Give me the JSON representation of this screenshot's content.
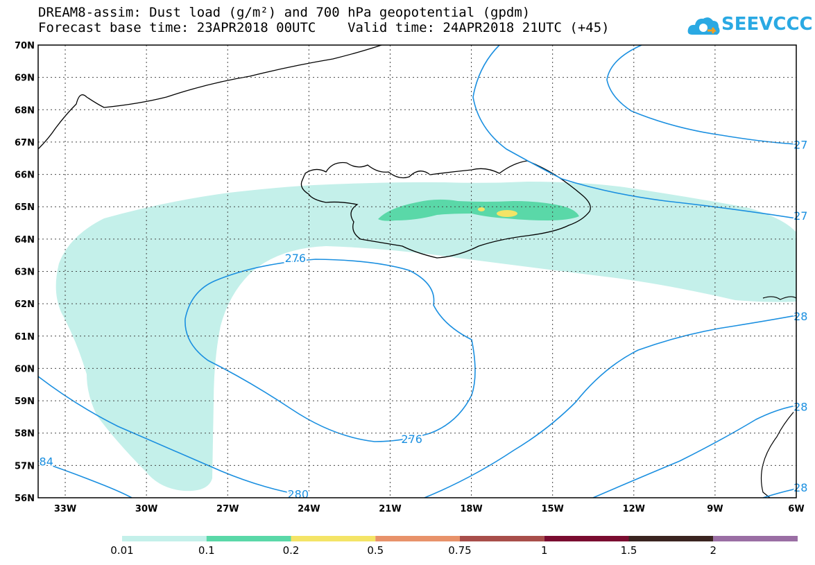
{
  "header": {
    "title_line1": "DREAM8-assim: Dust load (g/m²) and 700 hPa geopotential (gpdm)",
    "title_line2": "Forecast base time: 23APR2018 00UTC    Valid time: 24APR2018 21UTC (+45)",
    "logo_text": "SEEVCCC"
  },
  "map": {
    "lon_range": [
      -34,
      -6
    ],
    "lat_range": [
      56,
      70
    ],
    "lon_ticks": [
      "33W",
      "30W",
      "27W",
      "24W",
      "21W",
      "18W",
      "15W",
      "12W",
      "9W",
      "6W"
    ],
    "lat_ticks": [
      "56N",
      "57N",
      "58N",
      "59N",
      "60N",
      "61N",
      "62N",
      "63N",
      "64N",
      "65N",
      "66N",
      "67N",
      "68N",
      "69N",
      "70N"
    ],
    "grid": "dotted",
    "contour_color": "#1a8fe0",
    "contour_labels": [
      {
        "text": "276",
        "lon": -24.5,
        "lat": 63.4
      },
      {
        "text": "276",
        "lon": -20.2,
        "lat": 57.8
      },
      {
        "text": "280",
        "lon": -24.4,
        "lat": 56.1
      },
      {
        "text": "84",
        "lon": -33.7,
        "lat": 57.1
      },
      {
        "text": "27",
        "lon": -6.1,
        "lat": 66.9
      },
      {
        "text": "27",
        "lon": -6.1,
        "lat": 64.7
      },
      {
        "text": "28",
        "lon": -6.1,
        "lat": 61.6
      },
      {
        "text": "28",
        "lon": -6.1,
        "lat": 58.8
      },
      {
        "text": "28",
        "lon": -6.1,
        "lat": 56.3
      }
    ]
  },
  "colorbar": {
    "colors": [
      "#c4f0ea",
      "#5ad8a8",
      "#f4e466",
      "#e8926a",
      "#a84e4a",
      "#7a0c30",
      "#3a2420",
      "#9a6ea4"
    ],
    "labels": [
      "0.01",
      "0.1",
      "0.2",
      "0.5",
      "0.75",
      "1",
      "1.5",
      "2"
    ],
    "unit": "g/m²"
  }
}
